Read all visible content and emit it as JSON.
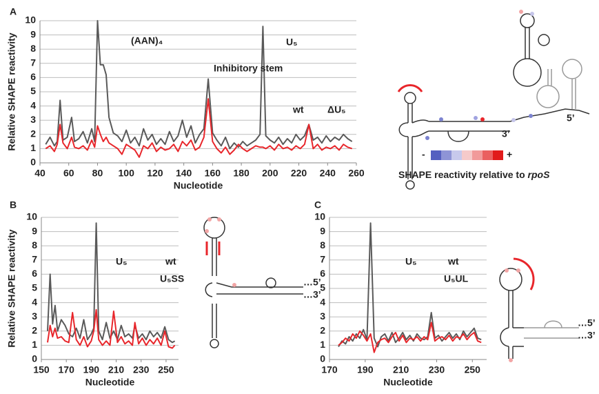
{
  "chart_data": [
    {
      "type": "line",
      "panel": "A",
      "ylabel": "Relative SHAPE reactivity",
      "xlabel": "Nucleotide",
      "annotations": [
        "(AAN)₄",
        "Inhibitory stem",
        "U₅"
      ],
      "xlim": [
        40,
        260
      ],
      "xticks": [
        40,
        60,
        80,
        100,
        120,
        140,
        160,
        180,
        200,
        220,
        240,
        260
      ],
      "ylim": [
        0,
        10
      ],
      "yticks": [
        0,
        1,
        2,
        3,
        4,
        5,
        6,
        7,
        8,
        9,
        10
      ],
      "grid": true,
      "x": [
        44,
        47,
        50,
        52,
        54,
        56,
        59,
        62,
        64,
        67,
        70,
        73,
        76,
        78,
        80,
        82,
        84,
        86,
        88,
        91,
        94,
        97,
        100,
        103,
        106,
        109,
        112,
        115,
        118,
        121,
        124,
        127,
        130,
        133,
        136,
        139,
        142,
        145,
        148,
        151,
        154,
        157,
        160,
        163,
        166,
        169,
        172,
        175,
        178,
        181,
        184,
        187,
        190,
        193,
        195,
        197,
        200,
        203,
        206,
        209,
        212,
        215,
        218,
        221,
        224,
        227,
        230,
        233,
        236,
        239,
        242,
        245,
        248,
        251,
        254,
        257
      ],
      "series": [
        {
          "name": "wt",
          "color": "#595959",
          "values": [
            1.3,
            1.8,
            1.2,
            1.5,
            4.4,
            1.6,
            1.8,
            3.2,
            1.5,
            1.7,
            2.2,
            1.4,
            2.4,
            1.5,
            10,
            6.9,
            6.9,
            6.2,
            3.2,
            2.1,
            1.9,
            1.5,
            2.3,
            1.4,
            1.8,
            1.2,
            2.4,
            1.6,
            2.0,
            1.3,
            1.7,
            1.3,
            2.2,
            1.5,
            1.9,
            3.0,
            1.8,
            2.6,
            1.4,
            2.0,
            2.4,
            5.9,
            2.1,
            1.6,
            1.2,
            1.8,
            1.0,
            1.4,
            1.1,
            1.5,
            1.2,
            1.4,
            1.6,
            2.0,
            9.6,
            1.9,
            1.6,
            1.4,
            1.8,
            1.3,
            1.7,
            1.4,
            2.0,
            1.6,
            1.9,
            2.7,
            1.6,
            1.8,
            1.4,
            1.9,
            1.5,
            1.8,
            1.6,
            2.0,
            1.7,
            1.5
          ]
        },
        {
          "name": "ΔU₅",
          "color": "#e8262b",
          "values": [
            1.0,
            1.2,
            0.8,
            1.3,
            2.7,
            1.4,
            1.0,
            1.8,
            1.1,
            1.0,
            1.2,
            0.9,
            1.6,
            1.1,
            2.6,
            2.0,
            1.5,
            1.8,
            1.4,
            1.2,
            1.0,
            0.6,
            1.3,
            1.1,
            0.9,
            0.4,
            1.2,
            1.0,
            1.4,
            0.8,
            1.1,
            0.9,
            1.0,
            1.3,
            0.8,
            1.5,
            1.2,
            1.6,
            0.9,
            1.1,
            1.8,
            4.5,
            1.5,
            1.0,
            0.7,
            1.1,
            0.6,
            0.9,
            1.3,
            1.0,
            0.8,
            1.0,
            1.2,
            1.1,
            1.1,
            1.0,
            1.2,
            0.9,
            1.3,
            1.0,
            1.1,
            0.9,
            1.2,
            1.0,
            1.3,
            2.7,
            1.0,
            1.3,
            0.9,
            1.1,
            1.0,
            1.2,
            0.9,
            1.3,
            1.1,
            1.0
          ]
        }
      ]
    },
    {
      "type": "line",
      "panel": "B",
      "ylabel": "Relative SHAPE reactivity",
      "xlabel": "Nucleotide",
      "annotations": [
        "U₅"
      ],
      "xlim": [
        150,
        260
      ],
      "xticks": [
        150,
        170,
        190,
        210,
        230,
        250
      ],
      "ylim": [
        0,
        10
      ],
      "yticks": [
        0,
        1,
        2,
        3,
        4,
        5,
        6,
        7,
        8,
        9,
        10
      ],
      "grid": true,
      "x": [
        155,
        157,
        159,
        161,
        163,
        166,
        169,
        172,
        175,
        178,
        181,
        184,
        187,
        190,
        192,
        194,
        196,
        199,
        202,
        205,
        208,
        211,
        214,
        217,
        220,
        223,
        225,
        228,
        231,
        234,
        237,
        240,
        243,
        246,
        249,
        252,
        255,
        257
      ],
      "series": [
        {
          "name": "wt",
          "color": "#595959",
          "values": [
            2.0,
            6.0,
            2.5,
            3.8,
            2.0,
            2.8,
            2.4,
            1.8,
            1.6,
            2.2,
            1.5,
            2.8,
            1.4,
            1.8,
            2.2,
            9.6,
            2.0,
            1.4,
            2.6,
            1.5,
            2.0,
            1.4,
            2.4,
            1.6,
            1.8,
            1.5,
            2.4,
            1.5,
            1.8,
            1.4,
            2.0,
            1.6,
            1.9,
            1.5,
            2.3,
            1.4,
            1.2,
            1.3
          ]
        },
        {
          "name": "U₅SS",
          "color": "#e8262b",
          "values": [
            1.2,
            2.4,
            1.6,
            2.2,
            1.5,
            1.6,
            1.3,
            1.2,
            3.3,
            1.4,
            1.0,
            1.6,
            0.9,
            1.3,
            2.0,
            3.5,
            1.4,
            1.0,
            1.3,
            1.0,
            3.4,
            1.2,
            1.6,
            1.1,
            1.3,
            1.0,
            2.6,
            1.1,
            1.5,
            1.0,
            1.4,
            1.1,
            1.5,
            1.0,
            2.0,
            0.9,
            0.8,
            1.0
          ]
        }
      ]
    },
    {
      "type": "line",
      "panel": "C",
      "xlabel": "Nucleotide",
      "annotations": [
        "U₅"
      ],
      "xlim": [
        170,
        258
      ],
      "xticks": [
        170,
        190,
        210,
        230,
        250
      ],
      "ylim": [
        0,
        10
      ],
      "yticks": [
        0,
        1,
        2,
        3,
        4,
        5,
        6,
        7,
        8,
        9,
        10
      ],
      "grid": true,
      "x": [
        175,
        177,
        179,
        181,
        183,
        185,
        187,
        189,
        191,
        193,
        195,
        197,
        199,
        201,
        203,
        205,
        207,
        209,
        211,
        213,
        215,
        217,
        219,
        221,
        223,
        225,
        227,
        229,
        231,
        233,
        235,
        237,
        239,
        241,
        243,
        245,
        247,
        249,
        251,
        253,
        255
      ],
      "series": [
        {
          "name": "wt",
          "color": "#595959",
          "values": [
            0.9,
            1.3,
            1.1,
            1.6,
            1.3,
            1.8,
            1.5,
            2.1,
            1.4,
            9.6,
            1.5,
            0.9,
            1.6,
            1.8,
            1.3,
            1.9,
            1.2,
            1.5,
            1.9,
            1.4,
            1.7,
            1.3,
            1.8,
            1.5,
            1.4,
            1.6,
            3.3,
            1.5,
            1.7,
            1.3,
            1.6,
            1.9,
            1.5,
            1.8,
            1.4,
            2.0,
            1.6,
            1.9,
            2.2,
            1.5,
            1.4
          ]
        },
        {
          "name": "U₅UL",
          "color": "#e8262b",
          "values": [
            1.0,
            1.2,
            1.5,
            1.3,
            1.8,
            1.5,
            2.0,
            1.7,
            1.3,
            1.8,
            0.5,
            1.2,
            1.4,
            1.5,
            1.2,
            1.6,
            1.9,
            1.3,
            1.7,
            1.2,
            1.5,
            1.4,
            1.6,
            1.3,
            1.6,
            1.4,
            2.6,
            1.3,
            1.5,
            1.6,
            1.4,
            1.7,
            1.3,
            1.6,
            1.5,
            1.8,
            1.4,
            1.7,
            1.9,
            1.3,
            1.2
          ]
        }
      ]
    }
  ],
  "diagram_a": {
    "three_prime": "3’",
    "five_prime": "5’",
    "scale_min": "-",
    "scale_max": "+",
    "caption": "SHAPE reactivity relative to ",
    "caption_gene": "rpoS"
  },
  "diagram_b": {
    "five_prime": "…5’",
    "three_prime": "…3’"
  },
  "diagram_c": {
    "five_prime": "…5’",
    "three_prime": "…3’"
  }
}
